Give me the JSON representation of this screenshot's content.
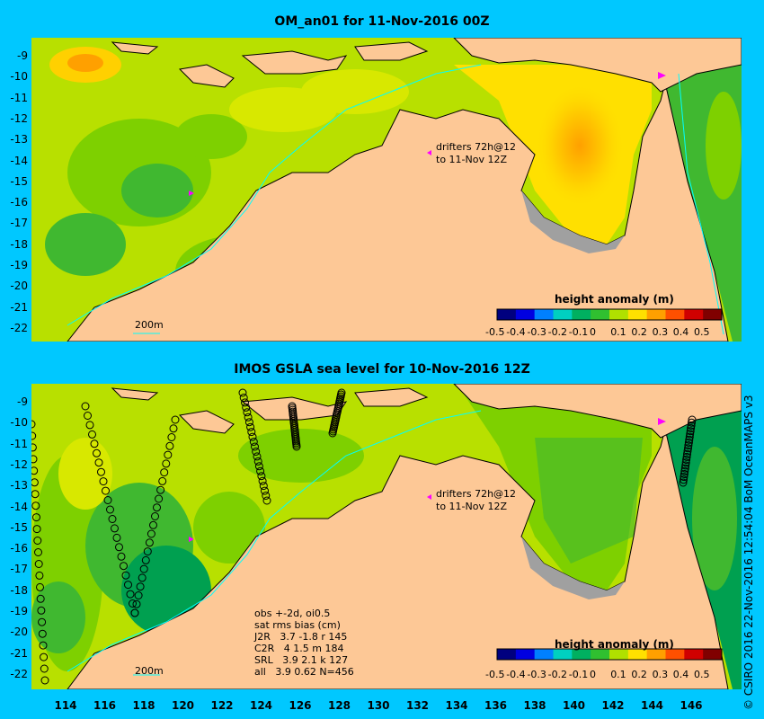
{
  "panels": [
    {
      "title": "OM_an01 for 11-Nov-2016 00Z",
      "colorbar_title": "height anomaly (m)",
      "drifter_line1": "drifters 72h@12",
      "drifter_line2": "to 11-Nov 12Z",
      "scale_label": "200m"
    },
    {
      "title": "IMOS GSLA sea level  for 10-Nov-2016 12Z",
      "colorbar_title": "height anomaly (m)",
      "drifter_line1": "drifters 72h@12",
      "drifter_line2": "to 11-Nov 12Z",
      "scale_label": "200m",
      "stats": {
        "line1": "obs +-2d, oi0.5",
        "line2": "sat rms bias (cm)",
        "line3": "J2R   3.7 -1.8 r 145",
        "line4": "C2R   4 1.5 m 184",
        "line5": "SRL   3.9 2.1 k 127",
        "line6": "all   3.9 0.62 N=456"
      }
    }
  ],
  "colorbar_ticks": [
    "-0.5",
    "-0.4",
    "-0.3",
    "-0.2",
    "-0.1",
    "0",
    "0.1",
    "0.2",
    "0.3",
    "0.4",
    "0.5"
  ],
  "colorbar_colors": [
    "#00007f",
    "#0000e0",
    "#0080ff",
    "#00d0c0",
    "#00b060",
    "#30c030",
    "#b0e000",
    "#ffe000",
    "#ffa000",
    "#ff5000",
    "#d00000",
    "#800000"
  ],
  "lat_ticks": [
    "-9",
    "-10",
    "-11",
    "-12",
    "-13",
    "-14",
    "-15",
    "-16",
    "-17",
    "-18",
    "-19",
    "-20",
    "-21",
    "-22"
  ],
  "lon_ticks": [
    "114",
    "116",
    "118",
    "120",
    "122",
    "124",
    "126",
    "128",
    "130",
    "132",
    "134",
    "136",
    "138",
    "140",
    "142",
    "144",
    "146"
  ],
  "credit": "© CSIRO 2016  22-Nov-2016 12:54:04 BoM OceanMAPS v3",
  "colors": {
    "background": "#00c8ff",
    "land": "#fdc896",
    "shelf_gray": "#a0a0a0",
    "coast": "#000000",
    "contour_200m": "#00ffff",
    "drifter": "#ff00ff"
  }
}
